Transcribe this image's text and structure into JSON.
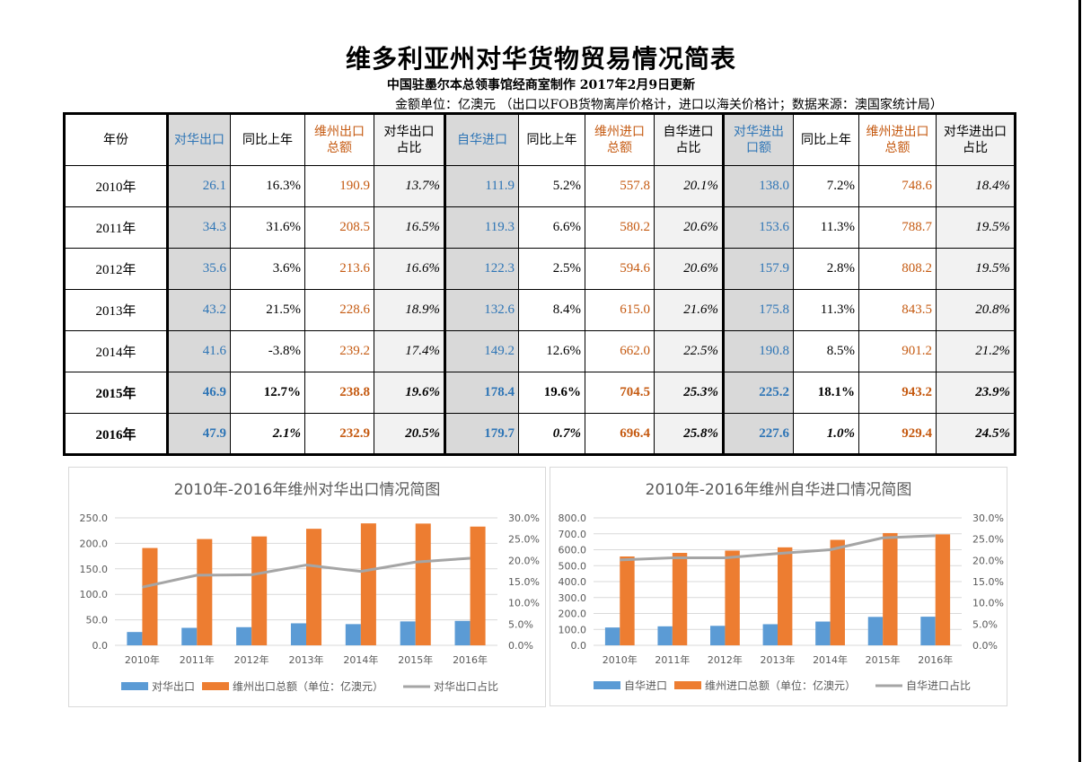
{
  "header": {
    "title": "维多利亚州对华货物贸易情况简表",
    "subtitle": "中国驻墨尔本总领事馆经商室制作 2017年2月9日更新",
    "unit_note": "金额单位：亿澳元 （出口以FOB货物离岸价格计，进口以海关价格计；数据来源：澳国家统计局）"
  },
  "colors": {
    "blue": "#2e75b6",
    "orange": "#c55a11",
    "bar_blue": "#5b9bd5",
    "bar_orange": "#ed7d31",
    "line_gray": "#a5a5a5",
    "cell_gray": "#d9d9d9",
    "cell_light": "#f2f2f2"
  },
  "table": {
    "headers": [
      "年份",
      "对华出口",
      "同比上年",
      "维州出口总额",
      "对华出口占比",
      "自华进口",
      "同比上年",
      "维州进口总额",
      "自华进口占比",
      "对华进出口额",
      "同比上年",
      "维州进出口总额",
      "对华进出口占比"
    ],
    "header_lines": [
      [
        "年份"
      ],
      [
        "对华出口"
      ],
      [
        "同比上年"
      ],
      [
        "维州出口",
        "总额"
      ],
      [
        "对华出口",
        "占比"
      ],
      [
        "自华进口"
      ],
      [
        "同比上年"
      ],
      [
        "维州进口",
        "总额"
      ],
      [
        "自华进口",
        "占比"
      ],
      [
        "对华进出",
        "口额"
      ],
      [
        "同比上年"
      ],
      [
        "维州进出口",
        "总额"
      ],
      [
        "对华进出口",
        "占比"
      ]
    ],
    "rows": [
      [
        "2010年",
        "26.1",
        "16.3%",
        "190.9",
        "13.7%",
        "111.9",
        "5.2%",
        "557.8",
        "20.1%",
        "138.0",
        "7.2%",
        "748.6",
        "18.4%"
      ],
      [
        "2011年",
        "34.3",
        "31.6%",
        "208.5",
        "16.5%",
        "119.3",
        "6.6%",
        "580.2",
        "20.6%",
        "153.6",
        "11.3%",
        "788.7",
        "19.5%"
      ],
      [
        "2012年",
        "35.6",
        "3.6%",
        "213.6",
        "16.6%",
        "122.3",
        "2.5%",
        "594.6",
        "20.6%",
        "157.9",
        "2.8%",
        "808.2",
        "19.5%"
      ],
      [
        "2013年",
        "43.2",
        "21.5%",
        "228.6",
        "18.9%",
        "132.6",
        "8.4%",
        "615.0",
        "21.6%",
        "175.8",
        "11.3%",
        "843.5",
        "20.8%"
      ],
      [
        "2014年",
        "41.6",
        "-3.8%",
        "239.2",
        "17.4%",
        "149.2",
        "12.6%",
        "662.0",
        "22.5%",
        "190.8",
        "8.5%",
        "901.2",
        "21.2%"
      ],
      [
        "2015年",
        "46.9",
        "12.7%",
        "238.8",
        "19.6%",
        "178.4",
        "19.6%",
        "704.5",
        "25.3%",
        "225.2",
        "18.1%",
        "943.2",
        "23.9%"
      ],
      [
        "2016年",
        "47.9",
        "2.1%",
        "232.9",
        "20.5%",
        "179.7",
        "0.7%",
        "696.4",
        "25.8%",
        "227.6",
        "1.0%",
        "929.4",
        "24.5%"
      ]
    ],
    "bold_rows": [
      5,
      6
    ],
    "italic_growth_rows": [
      6
    ]
  },
  "chart_data": [
    {
      "type": "bar",
      "title": "2010年-2016年维州对华出口情况简图",
      "categories": [
        "2010年",
        "2011年",
        "2012年",
        "2013年",
        "2014年",
        "2015年",
        "2016年"
      ],
      "series": [
        {
          "name": "对华出口",
          "kind": "bar",
          "axis": "left",
          "values": [
            26.1,
            34.3,
            35.6,
            43.2,
            41.6,
            46.9,
            47.9
          ]
        },
        {
          "name": "维州出口总额（单位：亿澳元）",
          "kind": "bar",
          "axis": "left",
          "values": [
            190.9,
            208.5,
            213.6,
            228.6,
            239.2,
            238.8,
            232.9
          ]
        },
        {
          "name": "对华出口占比",
          "kind": "line",
          "axis": "right",
          "values": [
            13.7,
            16.5,
            16.6,
            18.9,
            17.4,
            19.6,
            20.5
          ]
        }
      ],
      "ylim": [
        0,
        250
      ],
      "yticks": [
        "0.0",
        "50.0",
        "100.0",
        "150.0",
        "200.0",
        "250.0"
      ],
      "y2lim": [
        0,
        30
      ],
      "y2ticks": [
        "0.0%",
        "5.0%",
        "10.0%",
        "15.0%",
        "20.0%",
        "25.0%",
        "30.0%"
      ],
      "grid": true,
      "legend": "bottom"
    },
    {
      "type": "bar",
      "title": "2010年-2016年维州自华进口情况简图",
      "categories": [
        "2010年",
        "2011年",
        "2012年",
        "2013年",
        "2014年",
        "2015年",
        "2016年"
      ],
      "series": [
        {
          "name": "自华进口",
          "kind": "bar",
          "axis": "left",
          "values": [
            111.9,
            119.3,
            122.3,
            132.6,
            149.2,
            178.4,
            179.7
          ]
        },
        {
          "name": "维州进口总额（单位：亿澳元）",
          "kind": "bar",
          "axis": "left",
          "values": [
            557.8,
            580.2,
            594.6,
            615.0,
            662.0,
            704.5,
            696.4
          ]
        },
        {
          "name": "自华进口占比",
          "kind": "line",
          "axis": "right",
          "values": [
            20.1,
            20.6,
            20.6,
            21.6,
            22.5,
            25.3,
            25.8
          ]
        }
      ],
      "ylim": [
        0,
        800
      ],
      "yticks": [
        "0.0",
        "100.0",
        "200.0",
        "300.0",
        "400.0",
        "500.0",
        "600.0",
        "700.0",
        "800.0"
      ],
      "y2lim": [
        0,
        30
      ],
      "y2ticks": [
        "0.0%",
        "5.0%",
        "10.0%",
        "15.0%",
        "20.0%",
        "25.0%",
        "30.0%"
      ],
      "grid": true,
      "legend": "bottom"
    }
  ]
}
